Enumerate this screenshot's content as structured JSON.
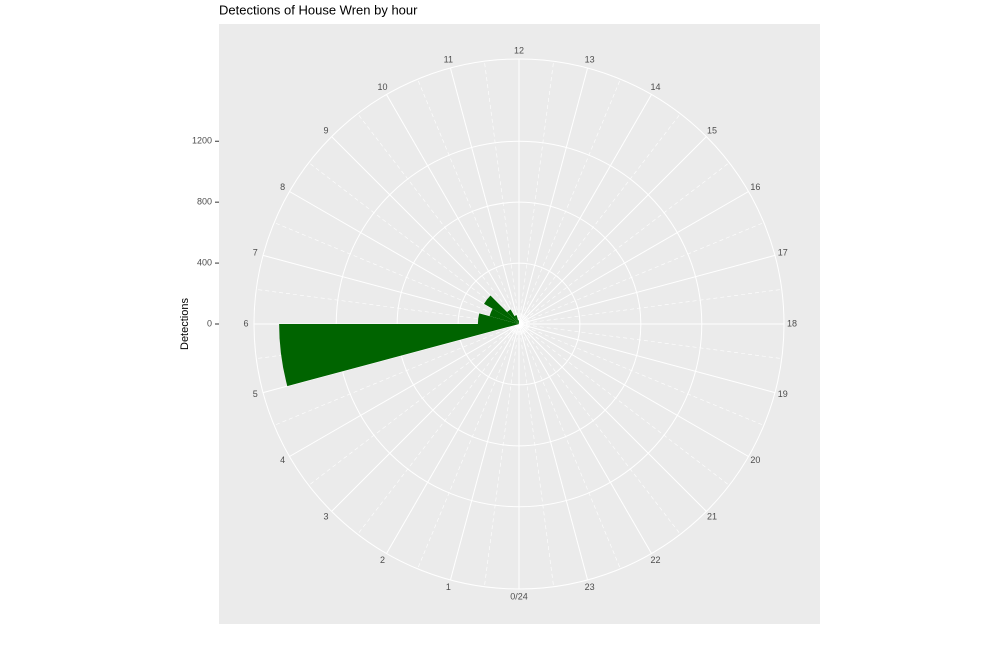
{
  "chart_data": {
    "type": "polar-bar",
    "title": "Detections of House Wren by hour",
    "y_label": "Detections",
    "categories": [
      0,
      1,
      2,
      3,
      4,
      5,
      6,
      7,
      8,
      9,
      10,
      11,
      12,
      13,
      14,
      15,
      16,
      17,
      18,
      19,
      20,
      21,
      22,
      23
    ],
    "values": [
      0,
      0,
      0,
      0,
      0,
      1575,
      270,
      200,
      265,
      110,
      60,
      25,
      0,
      0,
      0,
      0,
      0,
      0,
      0,
      0,
      0,
      0,
      0,
      0
    ],
    "color": "#006400",
    "xlim": [
      0,
      24
    ],
    "xticks": [
      {
        "value": 0,
        "label": "0/24"
      },
      1,
      2,
      3,
      4,
      5,
      6,
      7,
      8,
      9,
      10,
      11,
      12,
      13,
      14,
      15,
      16,
      17,
      18,
      19,
      20,
      21,
      22,
      23
    ],
    "ylim": [
      0,
      1740
    ],
    "yticks": [
      0,
      400,
      800,
      1200
    ],
    "grid": true
  }
}
